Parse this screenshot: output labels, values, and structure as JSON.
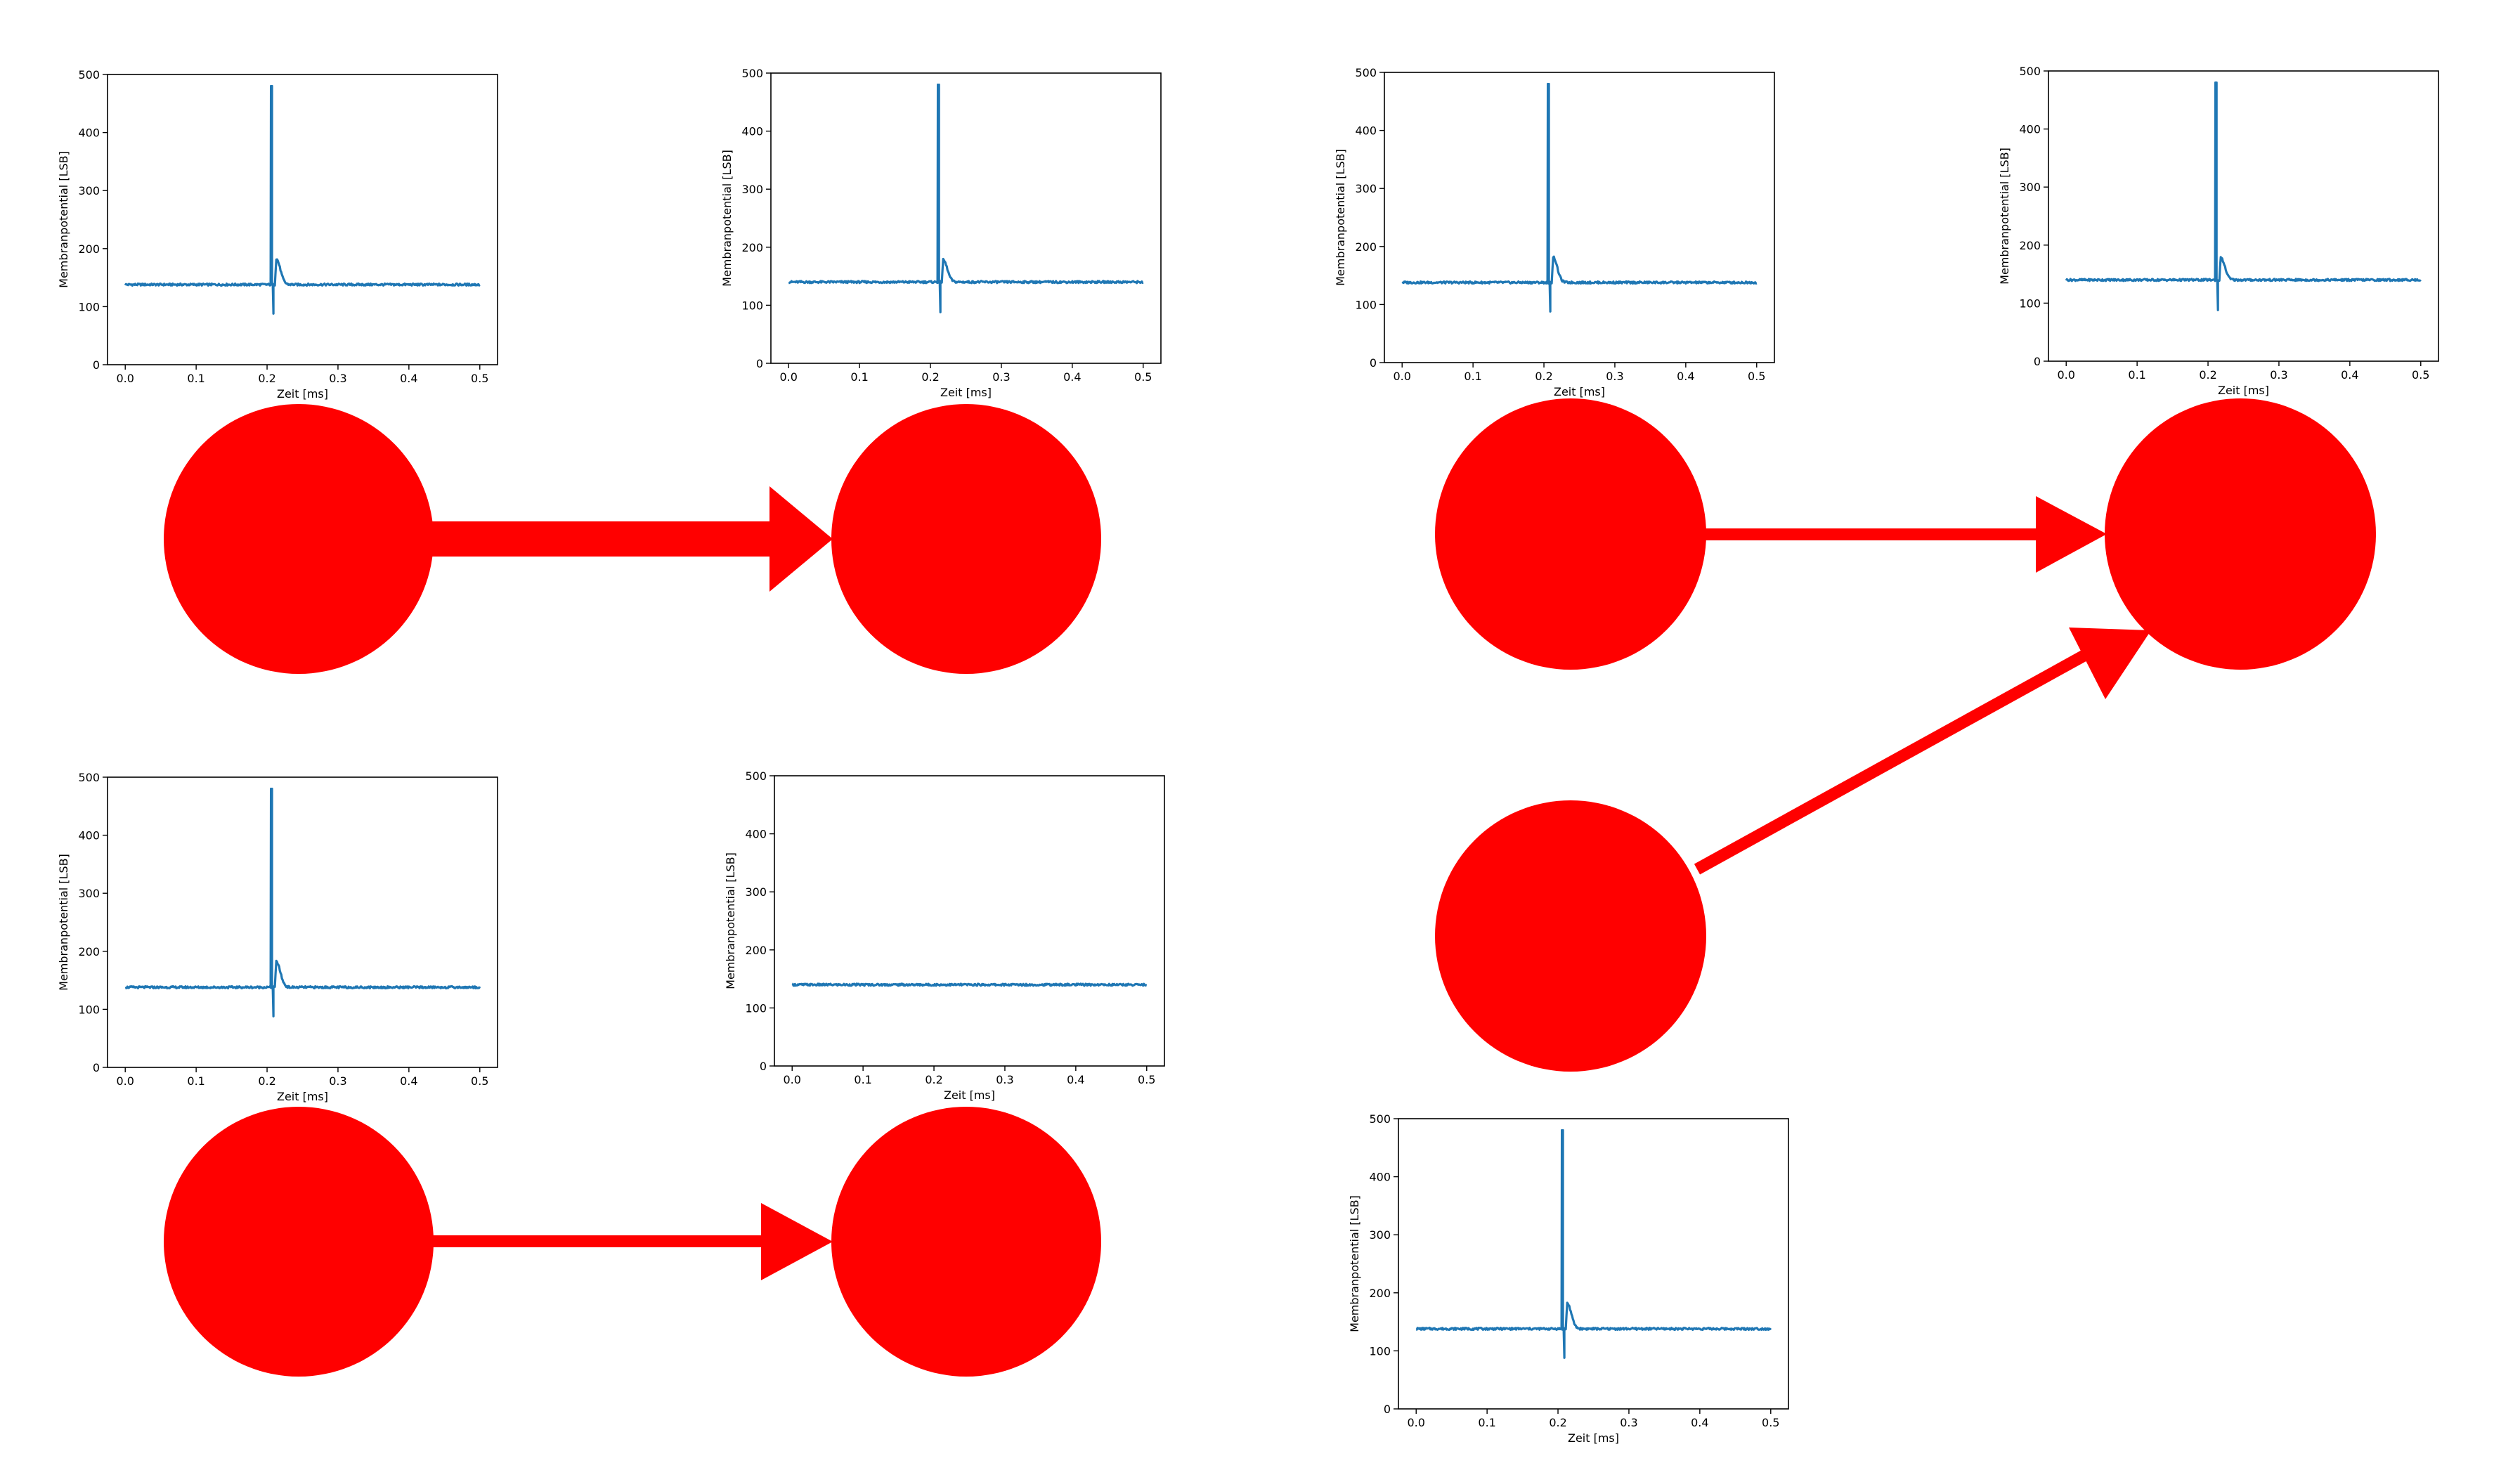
{
  "colors": {
    "trace": "#1f77b4",
    "neuron": "#ff0000",
    "axes": "#000000"
  },
  "plot_axes": {
    "xlabel": "Zeit [ms]",
    "ylabel": "Membranpotential [LSB]",
    "xticks": [
      "0.0",
      "0.1",
      "0.2",
      "0.3",
      "0.4",
      "0.5"
    ],
    "yticks": [
      "0",
      "100",
      "200",
      "300",
      "400",
      "500"
    ],
    "xlim": [
      -0.025,
      0.525
    ],
    "ylim": [
      0,
      500
    ]
  },
  "chart_data": [
    {
      "type": "line",
      "xlabel": "Zeit [ms]",
      "ylabel": "Membranpotential [LSB]",
      "xlim": [
        -0.025,
        0.525
      ],
      "ylim": [
        0,
        500
      ],
      "baseline": 138,
      "spike": true,
      "spike_time": 0.205,
      "spike_peak": 480,
      "spike_trough": 88,
      "afterpotential": 182,
      "grid": false
    },
    {
      "type": "line",
      "xlabel": "Zeit [ms]",
      "ylabel": "Membranpotential [LSB]",
      "xlim": [
        -0.025,
        0.525
      ],
      "ylim": [
        0,
        500
      ],
      "baseline": 140,
      "spike": true,
      "spike_time": 0.21,
      "spike_peak": 480,
      "spike_trough": 88,
      "afterpotential": 178,
      "grid": false
    },
    {
      "type": "line",
      "xlabel": "Zeit [ms]",
      "ylabel": "Membranpotential [LSB]",
      "xlim": [
        -0.025,
        0.525
      ],
      "ylim": [
        0,
        500
      ],
      "baseline": 138,
      "spike": true,
      "spike_time": 0.205,
      "spike_peak": 480,
      "spike_trough": 88,
      "afterpotential": 182,
      "grid": false
    },
    {
      "type": "line",
      "xlabel": "Zeit [ms]",
      "ylabel": "Membranpotential [LSB]",
      "xlim": [
        -0.025,
        0.525
      ],
      "ylim": [
        0,
        500
      ],
      "baseline": 140,
      "spike": true,
      "spike_time": 0.21,
      "spike_peak": 480,
      "spike_trough": 88,
      "afterpotential": 178,
      "grid": false
    },
    {
      "type": "line",
      "xlabel": "Zeit [ms]",
      "ylabel": "Membranpotential [LSB]",
      "xlim": [
        -0.025,
        0.525
      ],
      "ylim": [
        0,
        500
      ],
      "baseline": 138,
      "spike": true,
      "spike_time": 0.205,
      "spike_peak": 480,
      "spike_trough": 88,
      "afterpotential": 182,
      "grid": false
    },
    {
      "type": "line",
      "xlabel": "Zeit [ms]",
      "ylabel": "Membranpotential [LSB]",
      "xlim": [
        -0.025,
        0.525
      ],
      "ylim": [
        0,
        500
      ],
      "baseline": 140,
      "spike": false,
      "grid": false
    },
    {
      "type": "line",
      "xlabel": "Zeit [ms]",
      "ylabel": "Membranpotential [LSB]",
      "xlim": [
        -0.025,
        0.525
      ],
      "ylim": [
        0,
        500
      ],
      "baseline": 138,
      "spike": true,
      "spike_time": 0.205,
      "spike_peak": 480,
      "spike_trough": 88,
      "afterpotential": 182,
      "grid": false
    }
  ],
  "diagram": {
    "neurons": 7,
    "connections": [
      {
        "from": "neuron-1",
        "to": "neuron-2",
        "weight": "strong"
      },
      {
        "from": "neuron-3",
        "to": "neuron-4",
        "weight": "medium"
      },
      {
        "from": "neuron-5",
        "to": "neuron-4",
        "weight": "medium"
      },
      {
        "from": "neuron-6",
        "to": "neuron-7",
        "weight": "medium"
      }
    ]
  }
}
